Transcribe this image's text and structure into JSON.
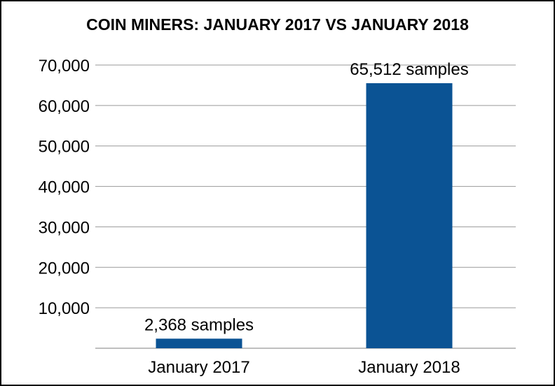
{
  "chart_data": {
    "type": "bar",
    "title": "COIN MINERS: JANUARY 2017 VS JANUARY 2018",
    "xlabel": "",
    "ylabel": "",
    "categories": [
      "January 2017",
      "January 2018"
    ],
    "values": [
      2368,
      65512
    ],
    "data_labels": [
      "2,368 samples",
      "65,512 samples"
    ],
    "y_ticks": [
      10000,
      20000,
      30000,
      40000,
      50000,
      60000,
      70000
    ],
    "y_tick_labels": [
      "10,000",
      "20,000",
      "30,000",
      "40,000",
      "50,000",
      "60,000",
      "70,000"
    ],
    "ylim": [
      0,
      70000
    ],
    "grid": true,
    "legend": "none",
    "colors": {
      "bar": "#0b5394",
      "grid": "#999999",
      "text": "#000000"
    }
  }
}
